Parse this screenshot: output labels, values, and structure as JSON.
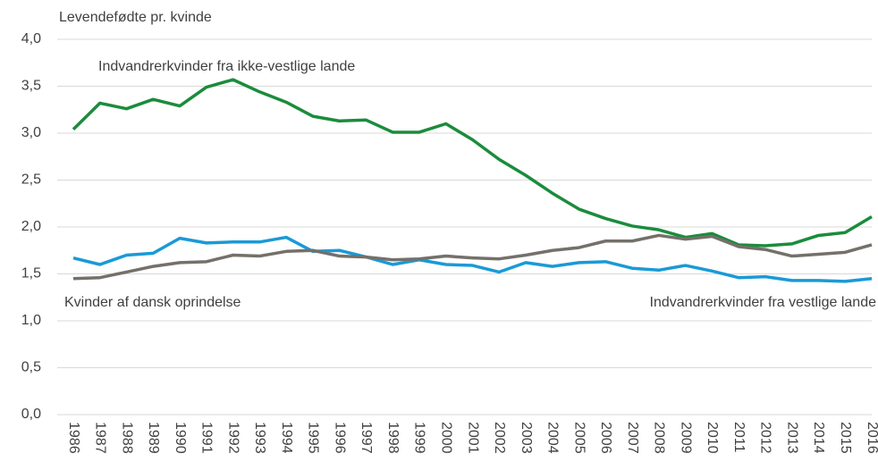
{
  "chart_data": {
    "type": "line",
    "y_label": "Levendefødte pr. kvinde",
    "categories": [
      "1986",
      "1987",
      "1988",
      "1989",
      "1990",
      "1991",
      "1992",
      "1993",
      "1994",
      "1995",
      "1996",
      "1997",
      "1998",
      "1999",
      "2000",
      "2001",
      "2002",
      "2003",
      "2004",
      "2005",
      "2006",
      "2007",
      "2008",
      "2009",
      "2010",
      "2011",
      "2012",
      "2013",
      "2014",
      "2015",
      "2016"
    ],
    "series": [
      {
        "name": "Indvandrerkvinder fra ikke-vestlige lande",
        "color": "#1a8c3c",
        "values": [
          3.04,
          3.32,
          3.26,
          3.36,
          3.29,
          3.49,
          3.57,
          3.44,
          3.33,
          3.18,
          3.13,
          3.14,
          3.01,
          3.01,
          3.1,
          2.93,
          2.72,
          2.55,
          2.36,
          2.19,
          2.09,
          2.01,
          1.97,
          1.89,
          1.93,
          1.81,
          1.8,
          1.82,
          1.91,
          1.94,
          2.11
        ]
      },
      {
        "name": "Indvandrerkvinder fra vestlige lande",
        "color": "#1a9ad6",
        "values": [
          1.67,
          1.6,
          1.7,
          1.72,
          1.88,
          1.83,
          1.84,
          1.84,
          1.89,
          1.74,
          1.75,
          1.68,
          1.6,
          1.65,
          1.6,
          1.59,
          1.52,
          1.62,
          1.58,
          1.62,
          1.63,
          1.56,
          1.54,
          1.59,
          1.53,
          1.46,
          1.47,
          1.43,
          1.43,
          1.42,
          1.45
        ]
      },
      {
        "name": "Kvinder af dansk oprindelse",
        "color": "#74706a",
        "values": [
          1.45,
          1.46,
          1.52,
          1.58,
          1.62,
          1.63,
          1.7,
          1.69,
          1.74,
          1.75,
          1.69,
          1.68,
          1.65,
          1.66,
          1.69,
          1.67,
          1.66,
          1.7,
          1.75,
          1.78,
          1.85,
          1.85,
          1.91,
          1.87,
          1.9,
          1.79,
          1.76,
          1.69,
          1.71,
          1.73,
          1.81
        ]
      }
    ],
    "ylim": [
      0,
      4
    ],
    "yticks": [
      {
        "value": 0,
        "label": "0,0"
      },
      {
        "value": 0.5,
        "label": "0,5"
      },
      {
        "value": 1,
        "label": "1,0"
      },
      {
        "value": 1.5,
        "label": "1,5"
      },
      {
        "value": 2,
        "label": "2,0"
      },
      {
        "value": 2.5,
        "label": "2,5"
      },
      {
        "value": 3,
        "label": "3,0"
      },
      {
        "value": 3.5,
        "label": "3,5"
      },
      {
        "value": 4,
        "label": "4,0"
      }
    ],
    "grid": true
  }
}
